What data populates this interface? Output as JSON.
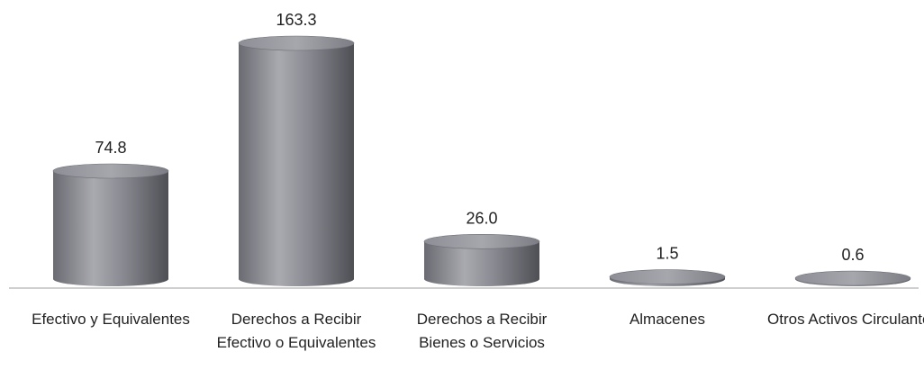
{
  "chart_data": {
    "type": "bar",
    "categories": [
      "Efectivo y Equivalentes",
      "Derechos a Recibir Efectivo o Equivalentes",
      "Derechos a Recibir Bienes o Servicios",
      "Almacenes",
      "Otros Activos Circulantes"
    ],
    "values": [
      74.8,
      163.3,
      26.0,
      1.5,
      0.6
    ],
    "value_labels": [
      "74.8",
      "163.3",
      "26.0",
      "1.5",
      "0.6"
    ],
    "color": "#7f8087"
  }
}
